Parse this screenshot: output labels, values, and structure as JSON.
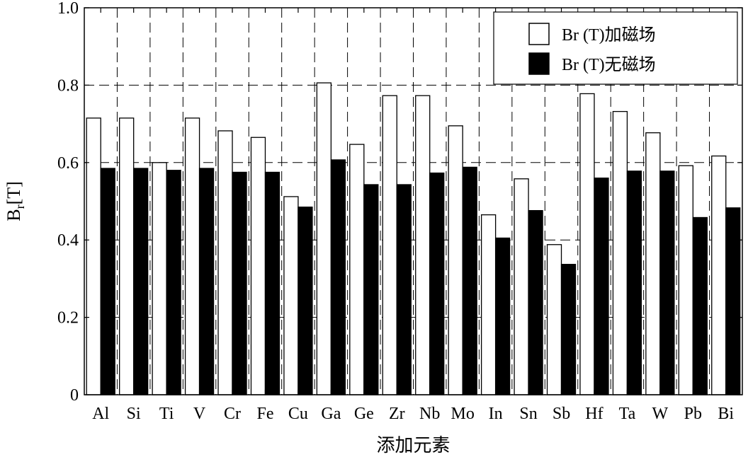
{
  "chart_data": {
    "type": "bar",
    "xlabel": "添加元素",
    "ylabel_main": "B",
    "ylabel_sub": "r",
    "ylabel_unit": "[T]",
    "ylim": [
      0,
      1.0
    ],
    "yticks": [
      0,
      0.2,
      0.4,
      0.6,
      0.8,
      1.0
    ],
    "ytick_labels": [
      "0",
      "0.2",
      "0.4",
      "0.6",
      "0.8",
      "1.0"
    ],
    "grid": true,
    "legend_position": "top-right",
    "categories": [
      "Al",
      "Si",
      "Ti",
      "V",
      "Cr",
      "Fe",
      "Cu",
      "Ga",
      "Ge",
      "Zr",
      "Nb",
      "Mo",
      "In",
      "Sn",
      "Sb",
      "Hf",
      "Ta",
      "W",
      "Pb",
      "Bi"
    ],
    "series": [
      {
        "name": "Br (T)加磁场",
        "color": "#ffffff",
        "values": [
          0.715,
          0.715,
          0.6,
          0.715,
          0.682,
          0.665,
          0.512,
          0.806,
          0.647,
          0.773,
          0.773,
          0.695,
          0.465,
          0.558,
          0.388,
          0.778,
          0.732,
          0.677,
          0.592,
          0.617
        ]
      },
      {
        "name": "Br (T)无磁场",
        "color": "#000000",
        "values": [
          0.585,
          0.585,
          0.58,
          0.585,
          0.575,
          0.575,
          0.485,
          0.607,
          0.543,
          0.543,
          0.573,
          0.588,
          0.405,
          0.476,
          0.337,
          0.56,
          0.578,
          0.578,
          0.458,
          0.483
        ]
      }
    ]
  }
}
